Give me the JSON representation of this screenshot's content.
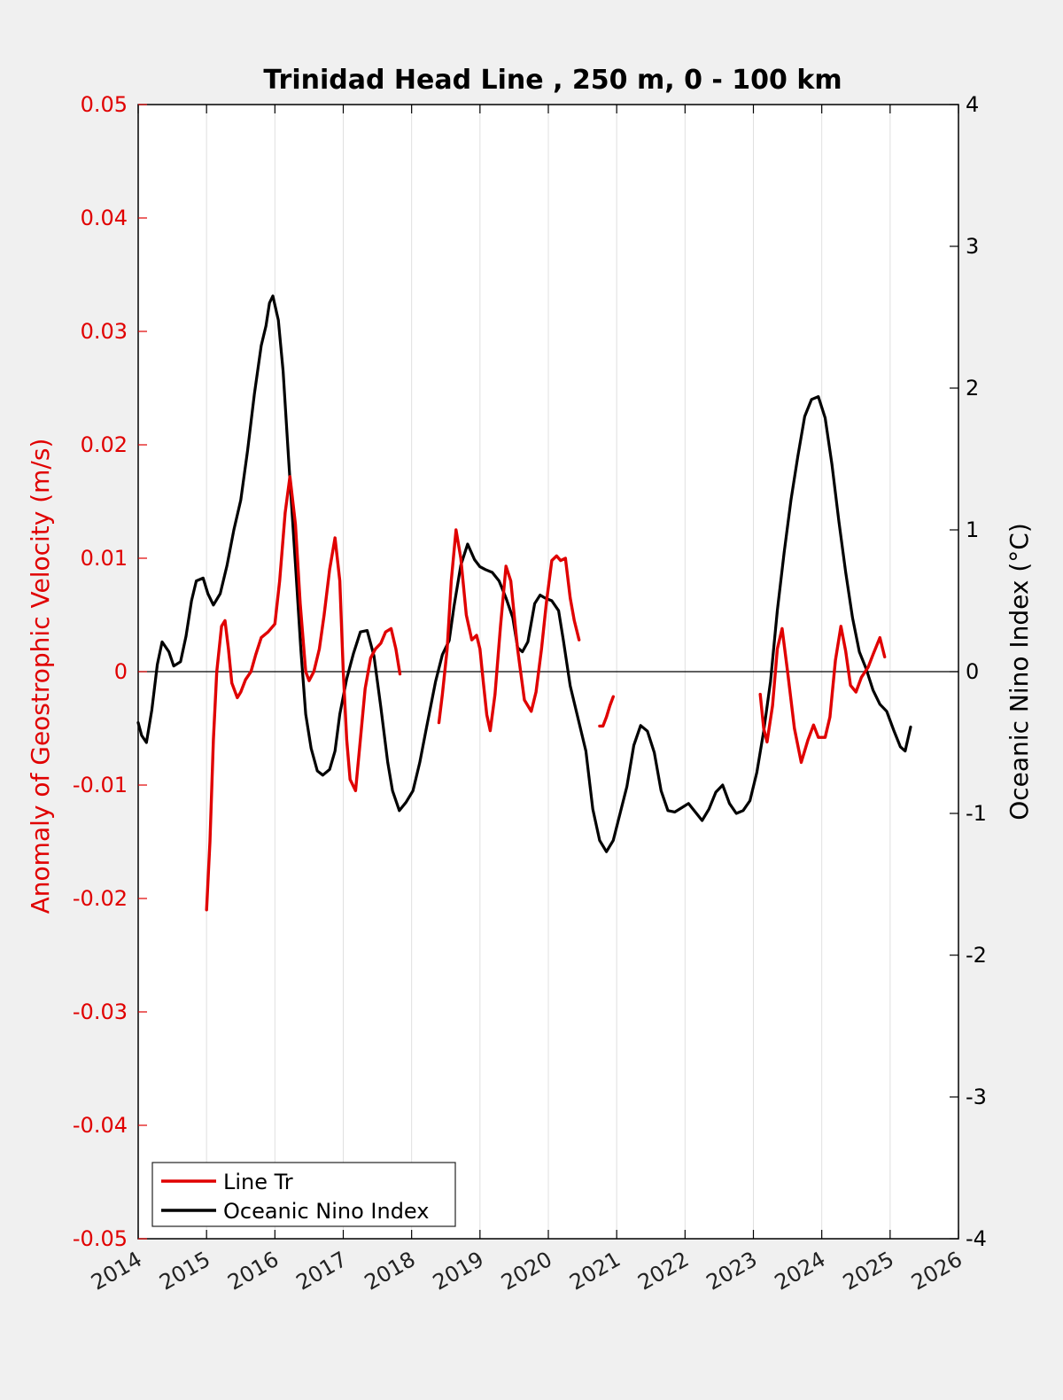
{
  "colors": {
    "line_tr": "#e00000",
    "oni": "#000000",
    "left_axis": "#e00000",
    "right_axis": "#000000",
    "background": "#f0f0f0",
    "plot_bg": "#ffffff",
    "grid": "#e0e0e0"
  },
  "chart_data": {
    "type": "line",
    "title": "Trinidad Head Line , 250 m, 0 - 100 km",
    "xlabel": "",
    "ylabel_left": "Anomaly of Geostrophic Velocity (m/s)",
    "ylabel_right": "Oceanic Nino Index (°C)",
    "xlim": [
      2014,
      2026
    ],
    "ylim_left": [
      -0.05,
      0.05
    ],
    "ylim_right": [
      -4,
      4
    ],
    "x_ticks": [
      "2014",
      "2015",
      "2016",
      "2017",
      "2018",
      "2019",
      "2020",
      "2021",
      "2022",
      "2023",
      "2024",
      "2025",
      "2026"
    ],
    "y_ticks_left": [
      "0.05",
      "0.04",
      "0.03",
      "0.02",
      "0.01",
      "0",
      "-0.01",
      "-0.02",
      "-0.03",
      "-0.04",
      "-0.05"
    ],
    "y_ticks_right": [
      "4",
      "3",
      "2",
      "1",
      "0",
      "-1",
      "-2",
      "-3",
      "-4"
    ],
    "grid": "vertical",
    "legend_position": "bottom-left",
    "series": [
      {
        "name": "Line Tr",
        "axis": "left",
        "segments": [
          [
            [
              2015.0,
              -0.021
            ],
            [
              2015.05,
              -0.015
            ],
            [
              2015.1,
              -0.006
            ],
            [
              2015.15,
              0.0
            ],
            [
              2015.22,
              0.004
            ],
            [
              2015.27,
              0.0045
            ],
            [
              2015.32,
              0.002
            ],
            [
              2015.37,
              -0.001
            ],
            [
              2015.45,
              -0.0023
            ],
            [
              2015.5,
              -0.0018
            ],
            [
              2015.57,
              -0.0007
            ],
            [
              2015.65,
              0.0
            ],
            [
              2015.72,
              0.0015
            ],
            [
              2015.8,
              0.003
            ],
            [
              2015.9,
              0.0035
            ],
            [
              2016.0,
              0.0042
            ],
            [
              2016.07,
              0.008
            ],
            [
              2016.15,
              0.014
            ],
            [
              2016.22,
              0.0172
            ],
            [
              2016.3,
              0.013
            ],
            [
              2016.37,
              0.006
            ],
            [
              2016.45,
              0.0
            ],
            [
              2016.5,
              -0.0008
            ],
            [
              2016.57,
              0.0
            ],
            [
              2016.65,
              0.002
            ],
            [
              2016.72,
              0.005
            ],
            [
              2016.8,
              0.009
            ],
            [
              2016.88,
              0.0118
            ],
            [
              2016.95,
              0.008
            ],
            [
              2017.0,
              0.0
            ],
            [
              2017.05,
              -0.006
            ],
            [
              2017.1,
              -0.0095
            ],
            [
              2017.18,
              -0.0105
            ],
            [
              2017.25,
              -0.006
            ],
            [
              2017.32,
              -0.0015
            ],
            [
              2017.4,
              0.0012
            ],
            [
              2017.47,
              0.002
            ],
            [
              2017.55,
              0.0025
            ],
            [
              2017.62,
              0.0035
            ],
            [
              2017.7,
              0.0038
            ],
            [
              2017.77,
              0.002
            ],
            [
              2017.83,
              -0.0002
            ]
          ],
          [
            [
              2018.4,
              -0.0045
            ],
            [
              2018.45,
              -0.002
            ],
            [
              2018.52,
              0.002
            ],
            [
              2018.58,
              0.008
            ],
            [
              2018.65,
              0.0125
            ],
            [
              2018.72,
              0.01
            ],
            [
              2018.8,
              0.005
            ],
            [
              2018.88,
              0.0028
            ],
            [
              2018.95,
              0.0032
            ],
            [
              2019.0,
              0.002
            ],
            [
              2019.05,
              -0.001
            ],
            [
              2019.1,
              -0.0038
            ],
            [
              2019.15,
              -0.0052
            ],
            [
              2019.22,
              -0.002
            ],
            [
              2019.3,
              0.004
            ],
            [
              2019.38,
              0.0093
            ],
            [
              2019.45,
              0.008
            ],
            [
              2019.55,
              0.002
            ],
            [
              2019.65,
              -0.0025
            ],
            [
              2019.75,
              -0.0035
            ],
            [
              2019.82,
              -0.0018
            ],
            [
              2019.9,
              0.002
            ],
            [
              2019.97,
              0.006
            ],
            [
              2020.05,
              0.0098
            ],
            [
              2020.12,
              0.0102
            ],
            [
              2020.18,
              0.0098
            ],
            [
              2020.25,
              0.01
            ],
            [
              2020.32,
              0.0065
            ],
            [
              2020.38,
              0.0045
            ],
            [
              2020.45,
              0.0028
            ]
          ],
          [
            [
              2020.75,
              -0.0048
            ],
            [
              2020.8,
              -0.0048
            ],
            [
              2020.85,
              -0.004
            ],
            [
              2020.9,
              -0.003
            ],
            [
              2020.95,
              -0.0022
            ]
          ],
          [
            [
              2023.1,
              -0.002
            ],
            [
              2023.15,
              -0.005
            ],
            [
              2023.2,
              -0.0062
            ],
            [
              2023.28,
              -0.003
            ],
            [
              2023.35,
              0.002
            ],
            [
              2023.42,
              0.0038
            ],
            [
              2023.5,
              0.0
            ],
            [
              2023.6,
              -0.005
            ],
            [
              2023.7,
              -0.008
            ],
            [
              2023.8,
              -0.006
            ],
            [
              2023.88,
              -0.0047
            ],
            [
              2023.95,
              -0.0058
            ],
            [
              2024.05,
              -0.0058
            ],
            [
              2024.12,
              -0.004
            ],
            [
              2024.2,
              0.001
            ],
            [
              2024.28,
              0.004
            ],
            [
              2024.35,
              0.0018
            ],
            [
              2024.42,
              -0.0012
            ],
            [
              2024.5,
              -0.0018
            ],
            [
              2024.58,
              -0.0005
            ],
            [
              2024.68,
              0.0004
            ],
            [
              2024.75,
              0.0015
            ],
            [
              2024.85,
              0.003
            ],
            [
              2024.92,
              0.0013
            ]
          ]
        ]
      },
      {
        "name": "Oceanic Nino Index",
        "axis": "right",
        "points": [
          [
            2014.0,
            -0.36
          ],
          [
            2014.05,
            -0.45
          ],
          [
            2014.12,
            -0.5
          ],
          [
            2014.2,
            -0.27
          ],
          [
            2014.28,
            0.05
          ],
          [
            2014.35,
            0.21
          ],
          [
            2014.45,
            0.14
          ],
          [
            2014.52,
            0.04
          ],
          [
            2014.62,
            0.07
          ],
          [
            2014.7,
            0.25
          ],
          [
            2014.78,
            0.5
          ],
          [
            2014.85,
            0.64
          ],
          [
            2014.95,
            0.66
          ],
          [
            2015.02,
            0.55
          ],
          [
            2015.1,
            0.47
          ],
          [
            2015.2,
            0.55
          ],
          [
            2015.3,
            0.75
          ],
          [
            2015.4,
            1.0
          ],
          [
            2015.5,
            1.21
          ],
          [
            2015.6,
            1.56
          ],
          [
            2015.7,
            1.96
          ],
          [
            2015.8,
            2.3
          ],
          [
            2015.87,
            2.44
          ],
          [
            2015.92,
            2.6
          ],
          [
            2015.97,
            2.65
          ],
          [
            2016.05,
            2.48
          ],
          [
            2016.12,
            2.12
          ],
          [
            2016.2,
            1.5
          ],
          [
            2016.3,
            0.76
          ],
          [
            2016.38,
            0.15
          ],
          [
            2016.45,
            -0.3
          ],
          [
            2016.53,
            -0.54
          ],
          [
            2016.62,
            -0.7
          ],
          [
            2016.7,
            -0.73
          ],
          [
            2016.8,
            -0.69
          ],
          [
            2016.88,
            -0.56
          ],
          [
            2016.95,
            -0.3
          ],
          [
            2017.05,
            -0.05
          ],
          [
            2017.15,
            0.13
          ],
          [
            2017.25,
            0.28
          ],
          [
            2017.35,
            0.29
          ],
          [
            2017.45,
            0.11
          ],
          [
            2017.55,
            -0.25
          ],
          [
            2017.65,
            -0.64
          ],
          [
            2017.72,
            -0.84
          ],
          [
            2017.82,
            -0.98
          ],
          [
            2017.92,
            -0.92
          ],
          [
            2018.02,
            -0.84
          ],
          [
            2018.12,
            -0.64
          ],
          [
            2018.22,
            -0.39
          ],
          [
            2018.35,
            -0.07
          ],
          [
            2018.45,
            0.12
          ],
          [
            2018.55,
            0.22
          ],
          [
            2018.62,
            0.46
          ],
          [
            2018.72,
            0.75
          ],
          [
            2018.82,
            0.9
          ],
          [
            2018.92,
            0.79
          ],
          [
            2019.0,
            0.74
          ],
          [
            2019.08,
            0.72
          ],
          [
            2019.18,
            0.7
          ],
          [
            2019.28,
            0.64
          ],
          [
            2019.38,
            0.52
          ],
          [
            2019.48,
            0.38
          ],
          [
            2019.55,
            0.17
          ],
          [
            2019.62,
            0.14
          ],
          [
            2019.7,
            0.21
          ],
          [
            2019.8,
            0.48
          ],
          [
            2019.88,
            0.54
          ],
          [
            2019.95,
            0.52
          ],
          [
            2020.05,
            0.5
          ],
          [
            2020.15,
            0.43
          ],
          [
            2020.22,
            0.22
          ],
          [
            2020.32,
            -0.1
          ],
          [
            2020.42,
            -0.3
          ],
          [
            2020.55,
            -0.56
          ],
          [
            2020.65,
            -0.97
          ],
          [
            2020.75,
            -1.19
          ],
          [
            2020.85,
            -1.27
          ],
          [
            2020.95,
            -1.19
          ],
          [
            2021.05,
            -1.0
          ],
          [
            2021.15,
            -0.81
          ],
          [
            2021.25,
            -0.52
          ],
          [
            2021.35,
            -0.38
          ],
          [
            2021.45,
            -0.42
          ],
          [
            2021.55,
            -0.57
          ],
          [
            2021.65,
            -0.84
          ],
          [
            2021.75,
            -0.98
          ],
          [
            2021.85,
            -0.99
          ],
          [
            2021.95,
            -0.96
          ],
          [
            2022.05,
            -0.93
          ],
          [
            2022.15,
            -0.99
          ],
          [
            2022.25,
            -1.05
          ],
          [
            2022.35,
            -0.97
          ],
          [
            2022.45,
            -0.85
          ],
          [
            2022.55,
            -0.8
          ],
          [
            2022.65,
            -0.93
          ],
          [
            2022.75,
            -1.0
          ],
          [
            2022.85,
            -0.98
          ],
          [
            2022.95,
            -0.91
          ],
          [
            2023.05,
            -0.71
          ],
          [
            2023.15,
            -0.42
          ],
          [
            2023.25,
            -0.07
          ],
          [
            2023.35,
            0.43
          ],
          [
            2023.45,
            0.84
          ],
          [
            2023.55,
            1.21
          ],
          [
            2023.65,
            1.52
          ],
          [
            2023.75,
            1.8
          ],
          [
            2023.85,
            1.92
          ],
          [
            2023.95,
            1.94
          ],
          [
            2024.05,
            1.79
          ],
          [
            2024.15,
            1.46
          ],
          [
            2024.25,
            1.06
          ],
          [
            2024.35,
            0.7
          ],
          [
            2024.45,
            0.38
          ],
          [
            2024.55,
            0.14
          ],
          [
            2024.65,
            0.02
          ],
          [
            2024.75,
            -0.13
          ],
          [
            2024.85,
            -0.23
          ],
          [
            2024.95,
            -0.28
          ],
          [
            2025.05,
            -0.41
          ],
          [
            2025.15,
            -0.53
          ],
          [
            2025.22,
            -0.56
          ],
          [
            2025.3,
            -0.39
          ]
        ]
      }
    ]
  }
}
